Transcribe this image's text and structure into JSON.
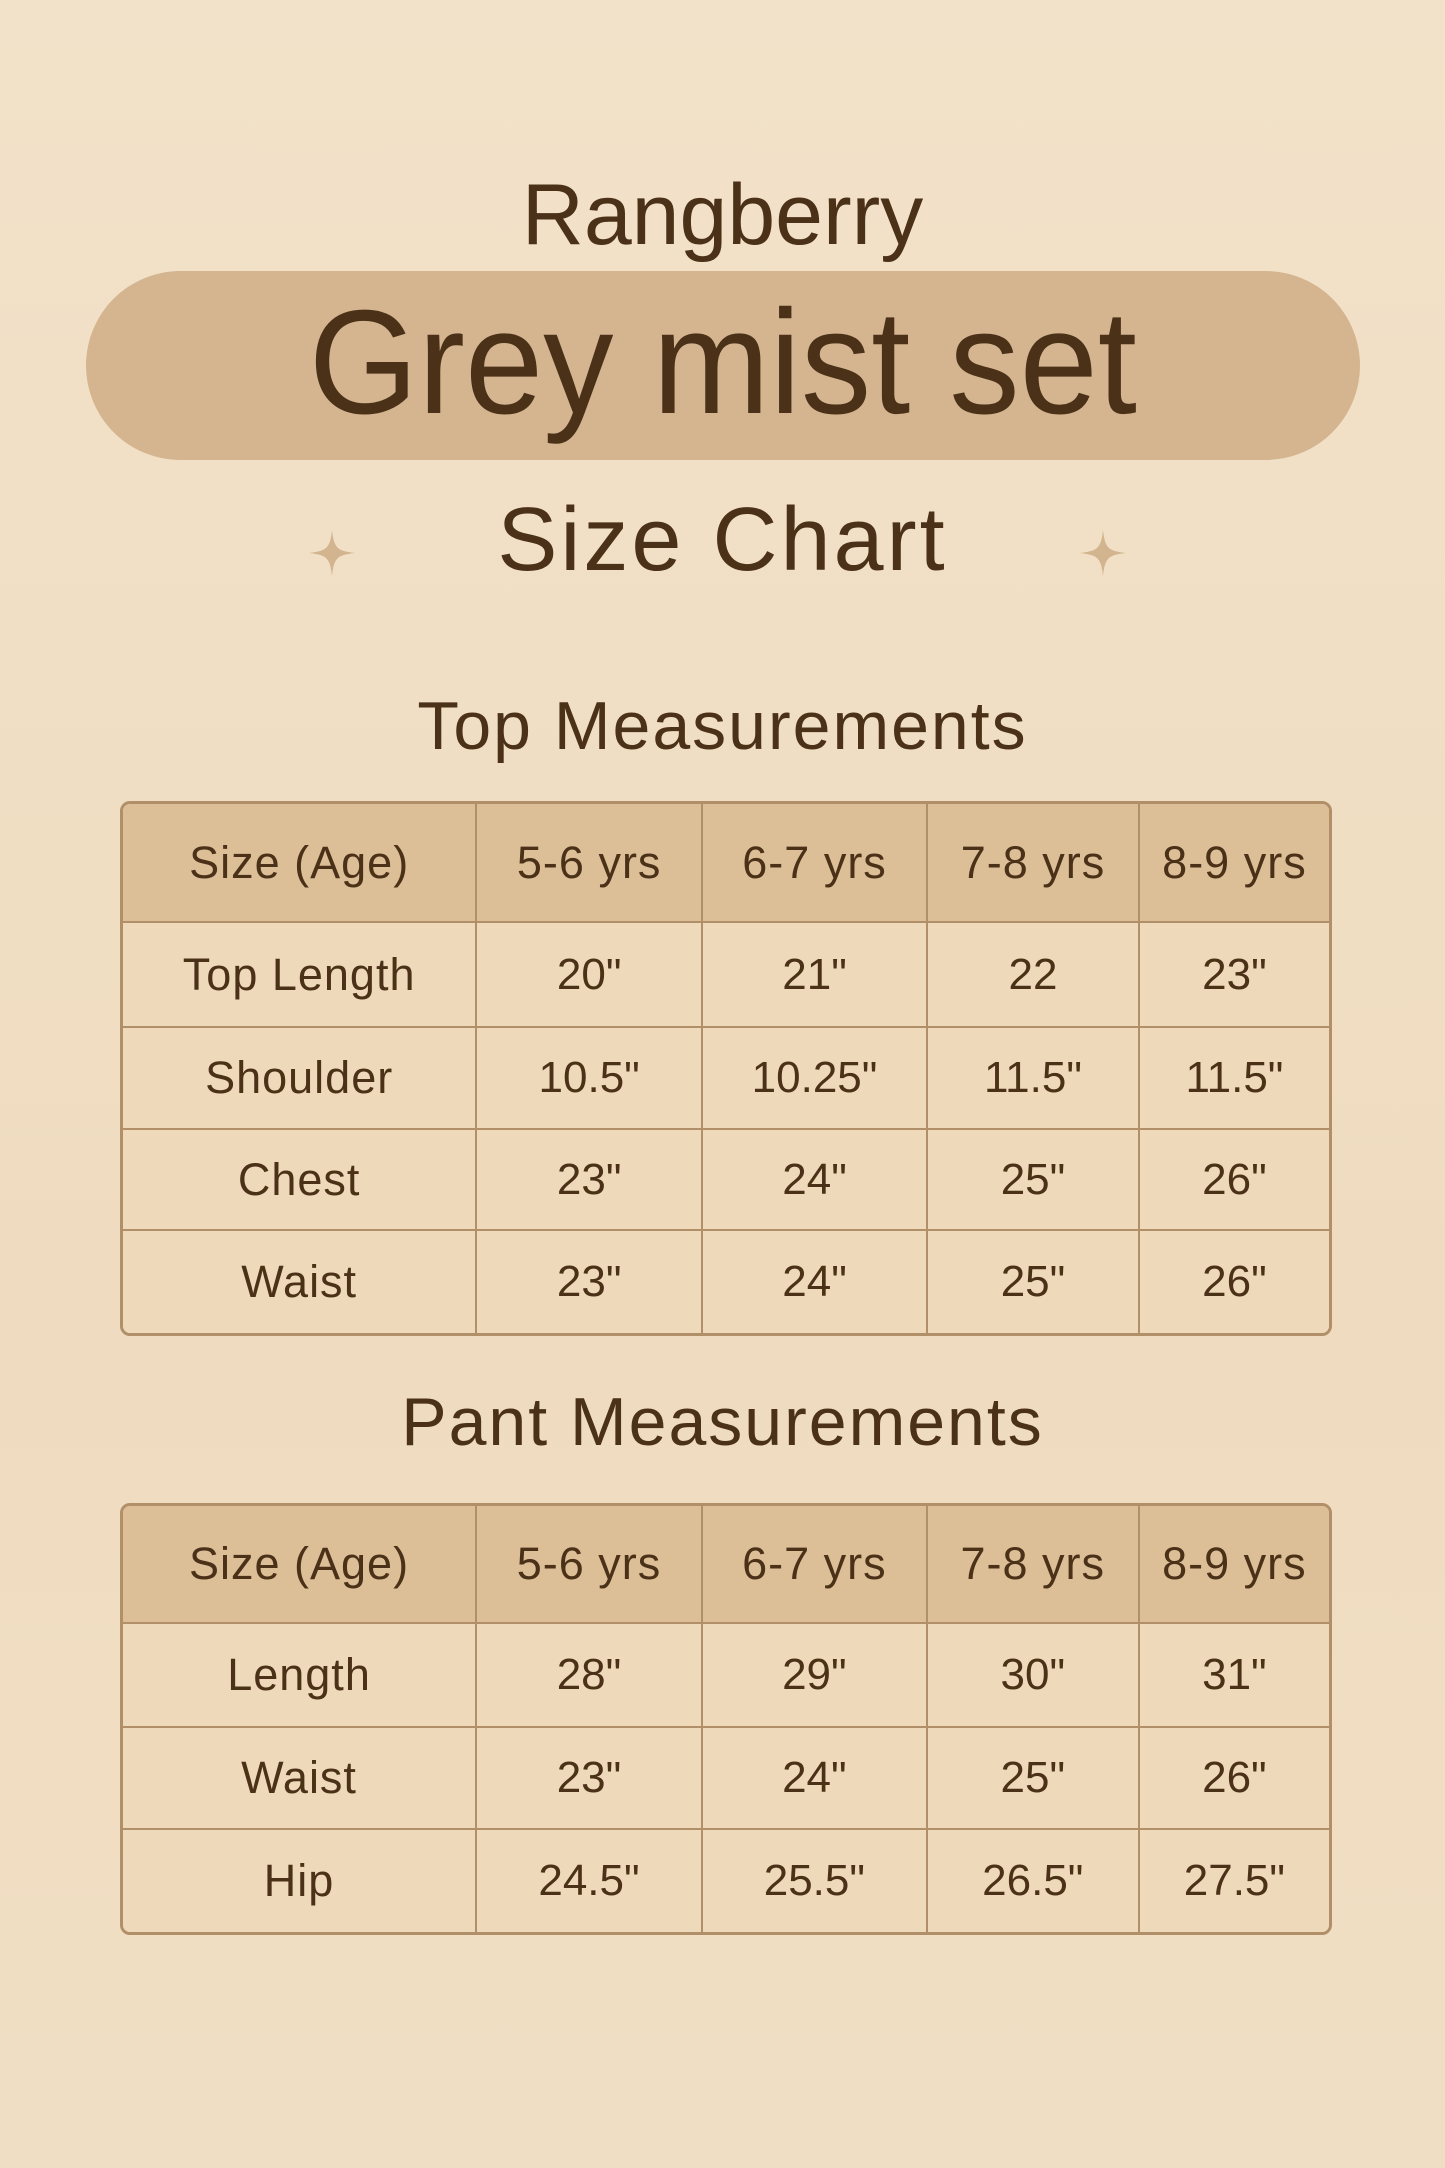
{
  "brand": "Rangberry",
  "product_title": "Grey mist set",
  "subtitle": "Size Chart",
  "colors": {
    "background": "#f0dfc5",
    "pill": "#d4b590",
    "header_cell": "#ddbf97",
    "cell": "#eed9ba",
    "border": "#b08f69",
    "text": "#4a3118",
    "star": "#d2b48e"
  },
  "icons": [
    "sparkle-star-icon",
    "sparkle-star-icon"
  ],
  "top": {
    "title": "Top Measurements",
    "header": [
      "Size (Age)",
      "5-6 yrs",
      "6-7 yrs",
      "7-8 yrs",
      "8-9 yrs"
    ],
    "rows": [
      [
        "Top Length",
        "20\"",
        "21\"",
        "22",
        "23\""
      ],
      [
        "Shoulder",
        "10.5\"",
        "10.25\"",
        "11.5\"",
        "11.5\""
      ],
      [
        "Chest",
        "23\"",
        "24\"",
        "25\"",
        "26\""
      ],
      [
        "Waist",
        "23\"",
        "24\"",
        "25\"",
        "26\""
      ]
    ]
  },
  "pant": {
    "title": "Pant Measurements",
    "header": [
      "Size (Age)",
      "5-6 yrs",
      "6-7 yrs",
      "7-8 yrs",
      "8-9 yrs"
    ],
    "rows": [
      [
        "Length",
        "28\"",
        "29\"",
        "30\"",
        "31\""
      ],
      [
        "Waist",
        "23\"",
        "24\"",
        "25\"",
        "26\""
      ],
      [
        "Hip",
        "24.5\"",
        "25.5\"",
        "26.5\"",
        "27.5\""
      ]
    ]
  }
}
